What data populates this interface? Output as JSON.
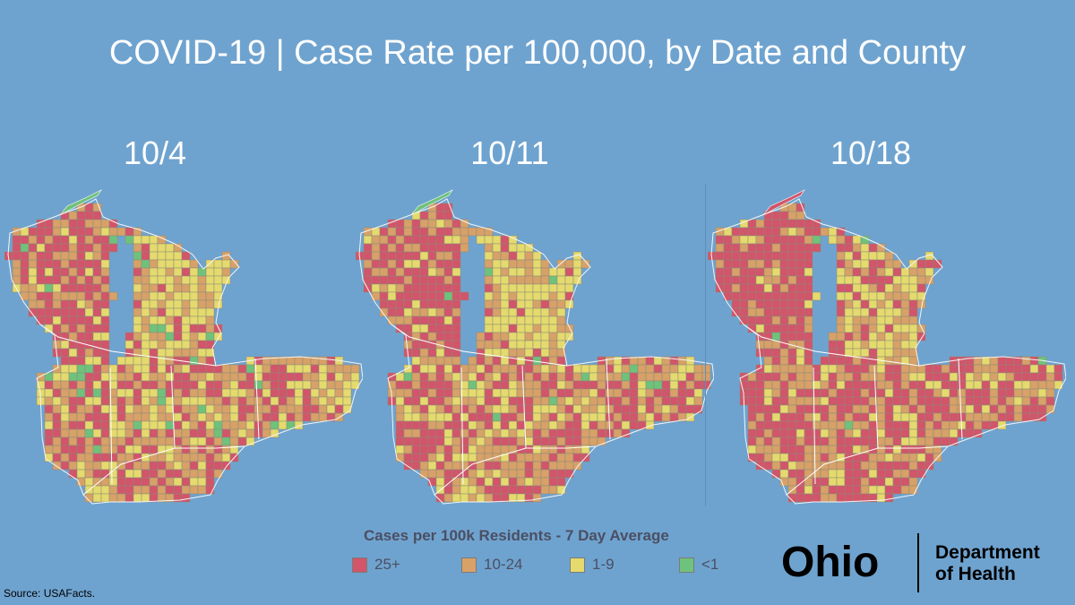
{
  "title": "COVID-19 | Case Rate per 100,000, by Date and County",
  "maps": [
    {
      "date": "10/4",
      "mix": [
        0.32,
        0.36,
        0.28,
        0.04
      ]
    },
    {
      "date": "10/11",
      "mix": [
        0.4,
        0.34,
        0.24,
        0.02
      ]
    },
    {
      "date": "10/18",
      "mix": [
        0.52,
        0.32,
        0.15,
        0.01
      ]
    }
  ],
  "legend": {
    "title": "Cases per 100k Residents - 7 Day Average",
    "items": [
      {
        "label": "25+",
        "color": "#d2556a"
      },
      {
        "label": "10-24",
        "color": "#d7a168"
      },
      {
        "label": "1-9",
        "color": "#e5da6d"
      },
      {
        "label": "<1",
        "color": "#6fc27b"
      }
    ]
  },
  "source": "Source: USAFacts.",
  "logo": {
    "word": "Ohio",
    "dept_line1": "Department",
    "dept_line2": "of Health"
  }
}
